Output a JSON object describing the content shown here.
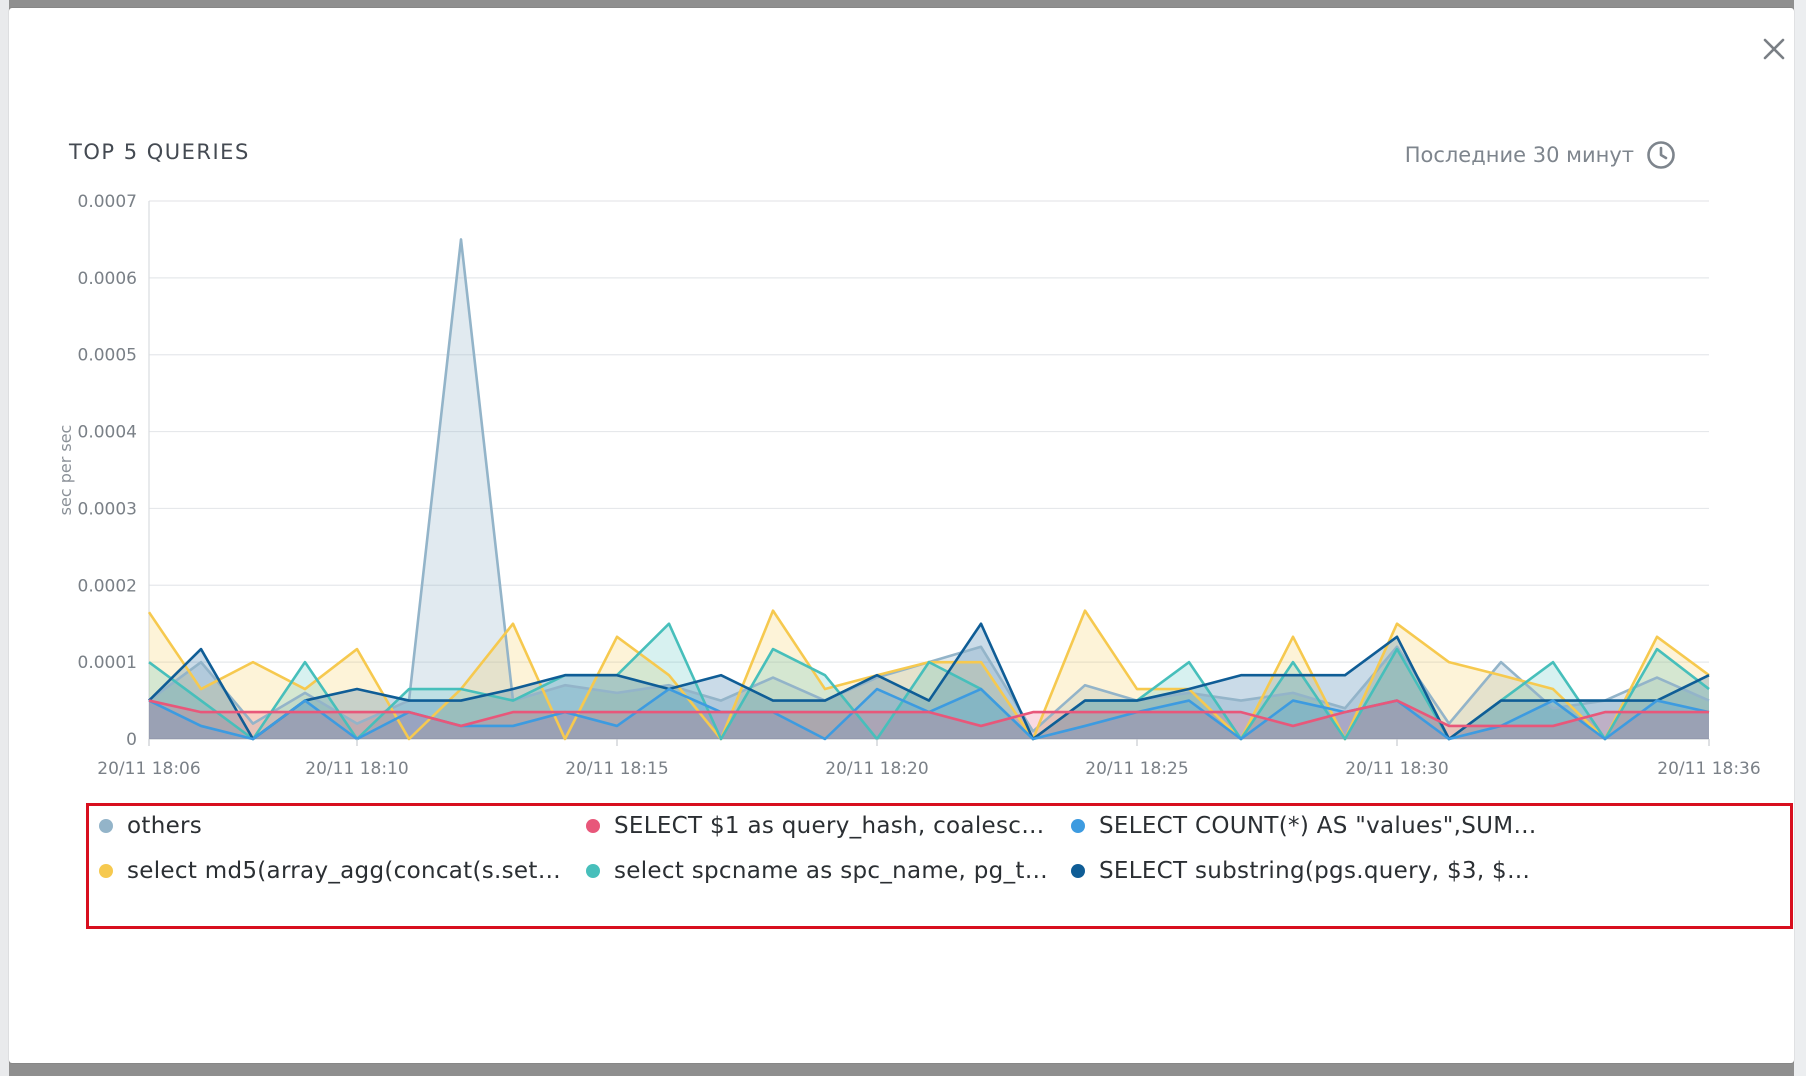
{
  "title": "TOP 5 QUERIES",
  "time_range": "Последние 30 минут",
  "icons": {
    "close": "close-icon",
    "clock": "clock-icon"
  },
  "chart_data": {
    "type": "area",
    "ylabel": "sec per sec",
    "xlabel": "",
    "ylim": [
      0,
      0.0007
    ],
    "y_ticks": [
      "0",
      "0.0001",
      "0.0002",
      "0.0003",
      "0.0004",
      "0.0005",
      "0.0006",
      "0.0007"
    ],
    "x_tick_labels": [
      "20/11 18:06",
      "20/11 18:10",
      "20/11 18:15",
      "20/11 18:20",
      "20/11 18:25",
      "20/11 18:30",
      "20/11 18:36"
    ],
    "x_tick_minutes": [
      0,
      4,
      9,
      14,
      19,
      24,
      30
    ],
    "x_minutes": [
      0,
      1,
      2,
      3,
      4,
      5,
      6,
      7,
      8,
      9,
      10,
      11,
      12,
      13,
      14,
      15,
      16,
      17,
      18,
      19,
      20,
      21,
      22,
      23,
      24,
      25,
      26,
      27,
      28,
      29,
      30
    ],
    "grid": true,
    "series": [
      {
        "name": "others",
        "color": "#93b4c9",
        "values": [
          5e-05,
          0.0001,
          2e-05,
          6e-05,
          2e-05,
          5e-05,
          0.00065,
          5e-05,
          7e-05,
          6e-05,
          7e-05,
          5e-05,
          8e-05,
          5e-05,
          8e-05,
          0.0001,
          0.00012,
          1e-05,
          7e-05,
          5e-05,
          6e-05,
          5e-05,
          6e-05,
          4e-05,
          0.00012,
          2e-05,
          0.0001,
          4e-05,
          5e-05,
          8e-05,
          5e-05
        ]
      },
      {
        "name": "SELECT $1 as query_hash, coalesce((se...",
        "color": "#e8577a",
        "values": [
          5e-05,
          3.5e-05,
          3.5e-05,
          3.5e-05,
          3.5e-05,
          3.5e-05,
          1.7e-05,
          3.5e-05,
          3.5e-05,
          3.5e-05,
          3.5e-05,
          3.5e-05,
          3.5e-05,
          3.5e-05,
          3.5e-05,
          3.5e-05,
          1.7e-05,
          3.5e-05,
          3.5e-05,
          3.5e-05,
          3.5e-05,
          3.5e-05,
          1.7e-05,
          3.5e-05,
          5e-05,
          1.7e-05,
          1.7e-05,
          1.7e-05,
          3.5e-05,
          3.5e-05,
          3.5e-05
        ]
      },
      {
        "name": "SELECT COUNT(*) AS \"values\",SUM(CA...",
        "color": "#3d9be0",
        "values": [
          5e-05,
          1.7e-05,
          0,
          5e-05,
          0,
          3.5e-05,
          1.7e-05,
          1.7e-05,
          3.5e-05,
          1.7e-05,
          6.5e-05,
          3.5e-05,
          3.5e-05,
          0,
          6.5e-05,
          3.5e-05,
          6.5e-05,
          0,
          1.7e-05,
          3.5e-05,
          5e-05,
          0,
          5e-05,
          3.5e-05,
          5e-05,
          0,
          1.7e-05,
          5e-05,
          0,
          5e-05,
          3.5e-05
        ]
      },
      {
        "name": "select md5(array_agg(concat(s.setting,...",
        "color": "#f6c94f",
        "values": [
          0.000165,
          6.5e-05,
          0.0001,
          6.5e-05,
          0.000117,
          0,
          6.5e-05,
          0.00015,
          0,
          0.000133,
          8.3e-05,
          0,
          0.000167,
          6.5e-05,
          8.3e-05,
          0.0001,
          0.0001,
          0,
          0.000167,
          6.5e-05,
          6.5e-05,
          0,
          0.000133,
          0,
          0.00015,
          0.0001,
          8.3e-05,
          6.5e-05,
          0,
          0.000133,
          8.3e-05
        ]
      },
      {
        "name": "select spcname as spc_name, pg_table...",
        "color": "#47bfbb",
        "values": [
          0.0001,
          5e-05,
          0,
          0.0001,
          0,
          6.5e-05,
          6.5e-05,
          5e-05,
          8.3e-05,
          8.3e-05,
          0.00015,
          0,
          0.000117,
          8.3e-05,
          0,
          0.0001,
          6.5e-05,
          0,
          5e-05,
          5e-05,
          0.0001,
          0,
          0.0001,
          0,
          0.000117,
          0,
          5e-05,
          0.0001,
          0,
          0.000117,
          6.5e-05
        ]
      },
      {
        "name": "SELECT substring(pgs.query, $3, $4) as...",
        "color": "#0f5d96",
        "values": [
          5e-05,
          0.000117,
          0,
          5e-05,
          6.5e-05,
          5e-05,
          5e-05,
          6.5e-05,
          8.3e-05,
          8.3e-05,
          6.5e-05,
          8.3e-05,
          5e-05,
          5e-05,
          8.3e-05,
          5e-05,
          0.00015,
          0,
          5e-05,
          5e-05,
          6.5e-05,
          8.3e-05,
          8.3e-05,
          8.3e-05,
          0.000133,
          0,
          5e-05,
          5e-05,
          5e-05,
          5e-05,
          8.3e-05
        ]
      }
    ]
  }
}
